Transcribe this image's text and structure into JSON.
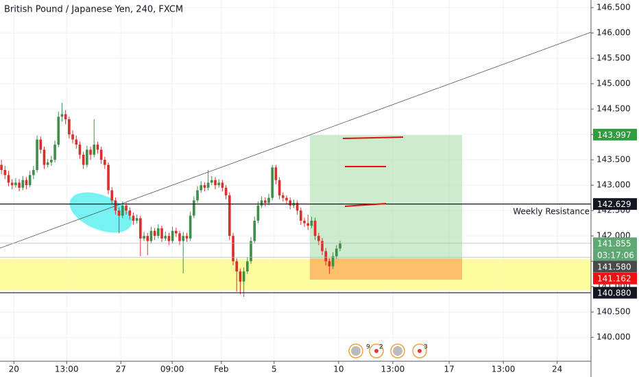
{
  "chart_data": {
    "type": "candlestick",
    "title": "British Pound / Japanese Yen, 240, FXCM",
    "up_color": "#3d8f4a",
    "down_color": "#d9302c",
    "grid": true,
    "xlim": [
      -0.4,
      165.4
    ],
    "xticks": [
      {
        "value": 3.5,
        "label": "20"
      },
      {
        "value": 18.3,
        "label": "13:00"
      },
      {
        "value": 33.5,
        "label": "27"
      },
      {
        "value": 47.9,
        "label": "09:00"
      },
      {
        "value": 61.7,
        "label": "Feb"
      },
      {
        "value": 76.5,
        "label": "5"
      },
      {
        "value": 94.6,
        "label": "10"
      },
      {
        "value": 109.8,
        "label": "13:00"
      },
      {
        "value": 125.6,
        "label": "17"
      },
      {
        "value": 140.8,
        "label": "13:00"
      },
      {
        "value": 155.9,
        "label": "24"
      }
    ],
    "ylim": [
      139.53,
      146.65
    ],
    "yticks": [
      {
        "value": 140.0,
        "label": "140.000"
      },
      {
        "value": 140.5,
        "label": "140.500"
      },
      {
        "value": 141.0,
        "label": "141.000"
      },
      {
        "value": 141.5,
        "label": "141.500"
      },
      {
        "value": 142.0,
        "label": "142.000"
      },
      {
        "value": 142.5,
        "label": "142.500"
      },
      {
        "value": 143.0,
        "label": "143.000"
      },
      {
        "value": 143.5,
        "label": "143.500"
      },
      {
        "value": 144.0,
        "label": "144.000"
      },
      {
        "value": 144.5,
        "label": "144.500"
      },
      {
        "value": 145.0,
        "label": "145.000"
      },
      {
        "value": 145.5,
        "label": "145.500"
      },
      {
        "value": 146.0,
        "label": "146.000"
      },
      {
        "value": 146.5,
        "label": "146.500"
      }
    ],
    "ohlc": [
      [
        143.4,
        143.5,
        143.22,
        143.3
      ],
      [
        143.3,
        143.38,
        143.12,
        143.2
      ],
      [
        143.2,
        143.28,
        142.98,
        143.05
      ],
      [
        143.05,
        143.12,
        142.92,
        143.0
      ],
      [
        143.0,
        143.14,
        142.95,
        143.05
      ],
      [
        143.05,
        143.12,
        142.88,
        142.95
      ],
      [
        142.95,
        143.18,
        142.9,
        143.1
      ],
      [
        143.1,
        143.16,
        142.92,
        143.0
      ],
      [
        143.0,
        143.28,
        142.96,
        143.2
      ],
      [
        143.2,
        143.38,
        143.12,
        143.3
      ],
      [
        143.3,
        143.98,
        143.25,
        143.9
      ],
      [
        143.9,
        143.96,
        143.62,
        143.7
      ],
      [
        143.7,
        143.76,
        143.32,
        143.4
      ],
      [
        143.4,
        143.52,
        143.35,
        143.45
      ],
      [
        143.45,
        143.58,
        143.38,
        143.5
      ],
      [
        143.5,
        143.88,
        143.45,
        143.8
      ],
      [
        143.8,
        144.45,
        143.75,
        144.35
      ],
      [
        144.35,
        144.62,
        144.25,
        144.4
      ],
      [
        144.4,
        144.48,
        144.2,
        144.3
      ],
      [
        144.3,
        144.35,
        143.92,
        144.0
      ],
      [
        144.0,
        144.08,
        143.82,
        143.9
      ],
      [
        143.9,
        143.98,
        143.72,
        143.8
      ],
      [
        143.8,
        143.86,
        143.52,
        143.6
      ],
      [
        143.6,
        143.66,
        143.32,
        143.4
      ],
      [
        143.4,
        143.78,
        143.35,
        143.7
      ],
      [
        143.7,
        143.76,
        143.5,
        143.6
      ],
      [
        143.6,
        144.3,
        143.55,
        143.8
      ],
      [
        143.8,
        143.86,
        143.62,
        143.7
      ],
      [
        143.7,
        143.76,
        143.42,
        143.5
      ],
      [
        143.5,
        143.56,
        143.32,
        143.4
      ],
      [
        143.4,
        143.45,
        142.82,
        142.9
      ],
      [
        142.9,
        142.96,
        142.62,
        142.7
      ],
      [
        142.7,
        142.76,
        142.42,
        142.5
      ],
      [
        142.5,
        142.56,
        142.05,
        142.4
      ],
      [
        142.4,
        142.68,
        142.35,
        142.6
      ],
      [
        142.6,
        142.66,
        142.42,
        142.5
      ],
      [
        142.5,
        142.56,
        142.32,
        142.4
      ],
      [
        142.4,
        142.46,
        142.22,
        142.3
      ],
      [
        142.3,
        142.42,
        142.25,
        142.35
      ],
      [
        142.35,
        142.4,
        141.6,
        141.95
      ],
      [
        141.95,
        142.08,
        141.9,
        142.0
      ],
      [
        142.0,
        142.06,
        141.62,
        141.9
      ],
      [
        141.9,
        142.18,
        141.85,
        142.1
      ],
      [
        142.1,
        142.16,
        141.92,
        142.0
      ],
      [
        142.0,
        142.23,
        141.95,
        142.15
      ],
      [
        142.15,
        142.2,
        141.88,
        141.95
      ],
      [
        141.95,
        142.08,
        141.9,
        142.0
      ],
      [
        142.0,
        142.06,
        141.82,
        141.9
      ],
      [
        141.9,
        142.18,
        141.85,
        142.1
      ],
      [
        142.1,
        142.16,
        141.98,
        142.05
      ],
      [
        142.05,
        142.1,
        141.82,
        141.9
      ],
      [
        141.9,
        142.08,
        141.26,
        142.0
      ],
      [
        142.0,
        142.06,
        141.88,
        141.95
      ],
      [
        141.95,
        142.48,
        141.9,
        142.4
      ],
      [
        142.4,
        142.78,
        142.35,
        142.7
      ],
      [
        142.7,
        142.98,
        142.65,
        142.9
      ],
      [
        142.9,
        143.08,
        142.85,
        143.0
      ],
      [
        143.0,
        143.06,
        142.88,
        142.95
      ],
      [
        142.95,
        143.3,
        142.9,
        143.05
      ],
      [
        143.05,
        143.18,
        143.0,
        143.1
      ],
      [
        143.1,
        143.16,
        142.92,
        143.0
      ],
      [
        143.0,
        143.12,
        142.95,
        143.05
      ],
      [
        143.05,
        143.1,
        142.88,
        142.95
      ],
      [
        142.95,
        143.0,
        142.72,
        142.8
      ],
      [
        142.8,
        142.86,
        141.92,
        142.0
      ],
      [
        142.0,
        142.06,
        141.42,
        141.5
      ],
      [
        141.5,
        141.56,
        140.9,
        141.3
      ],
      [
        141.3,
        141.36,
        140.85,
        141.1
      ],
      [
        141.1,
        141.38,
        140.8,
        141.3
      ],
      [
        141.3,
        141.58,
        141.25,
        141.5
      ],
      [
        141.5,
        141.98,
        141.45,
        141.9
      ],
      [
        141.9,
        142.38,
        141.85,
        142.3
      ],
      [
        142.3,
        142.68,
        142.25,
        142.6
      ],
      [
        142.6,
        142.78,
        142.55,
        142.7
      ],
      [
        142.7,
        142.76,
        142.58,
        142.65
      ],
      [
        142.65,
        142.83,
        142.6,
        142.75
      ],
      [
        142.75,
        143.4,
        142.7,
        143.35
      ],
      [
        143.35,
        143.4,
        143.02,
        143.1
      ],
      [
        143.1,
        143.16,
        142.72,
        142.8
      ],
      [
        142.8,
        142.86,
        142.68,
        142.75
      ],
      [
        142.75,
        142.8,
        142.62,
        142.7
      ],
      [
        142.7,
        142.76,
        142.52,
        142.6
      ],
      [
        142.6,
        142.72,
        142.55,
        142.65
      ],
      [
        142.65,
        142.7,
        142.42,
        142.5
      ],
      [
        142.5,
        142.56,
        142.22,
        142.3
      ],
      [
        142.3,
        142.36,
        142.18,
        142.25
      ],
      [
        142.25,
        142.42,
        142.12,
        142.2
      ],
      [
        142.2,
        142.38,
        142.15,
        142.3
      ],
      [
        142.3,
        142.36,
        141.92,
        142.0
      ],
      [
        142.0,
        142.06,
        141.82,
        141.9
      ],
      [
        141.9,
        141.96,
        141.62,
        141.7
      ],
      [
        141.7,
        141.76,
        141.42,
        141.5
      ],
      [
        141.5,
        141.56,
        141.25,
        141.4
      ],
      [
        141.4,
        141.68,
        141.35,
        141.6
      ],
      [
        141.6,
        141.82,
        141.55,
        141.75
      ],
      [
        141.75,
        141.9,
        141.7,
        141.855
      ]
    ],
    "price_tags": [
      {
        "value": 143.997,
        "color": "#2e9e3e"
      },
      {
        "value": 142.629,
        "color": "#131722",
        "line": "#131722"
      },
      {
        "value": 141.855,
        "color": "#5fa874",
        "line": "#b2b5be"
      },
      {
        "value": 141.58,
        "label": "141.580",
        "color": "#4a4a4a",
        "line": "#b2b5be"
      },
      {
        "value": 141.162,
        "color": "#f01010"
      },
      {
        "value": 140.88,
        "label": "140.880",
        "color": "#131722",
        "line": "#131722"
      }
    ],
    "countdown": "03:17:06",
    "annotation": "Weekly Resistance",
    "events": [
      9,
      2,
      3
    ]
  }
}
